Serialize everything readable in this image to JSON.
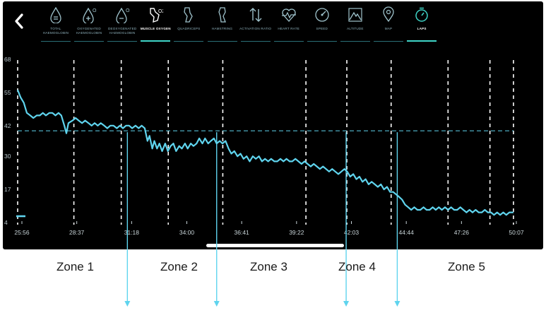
{
  "header": {
    "tabs": [
      {
        "label": "TOTAL HAEMOGLOBIN",
        "icon": "total-haemoglobin-icon",
        "active": false
      },
      {
        "label": "OXYGENATED HAEMOGLOBIN",
        "icon": "oxygenated-haemoglobin-icon",
        "active": false
      },
      {
        "label": "DEOXYGENATED HAEMOGLOBIN",
        "icon": "deoxygenated-haemoglobin-icon",
        "active": false
      },
      {
        "label": "MUSCLE OXYGEN",
        "icon": "muscle-oxygen-icon",
        "active": true
      },
      {
        "label": "QUADRICEPS",
        "icon": "quadriceps-icon",
        "active": false
      },
      {
        "label": "HAMSTRING",
        "icon": "hamstring-icon",
        "active": false
      },
      {
        "label": "ACTIVATION RATIO",
        "icon": "activation-ratio-icon",
        "active": false
      },
      {
        "label": "HEART RATE",
        "icon": "heart-rate-icon",
        "active": false
      },
      {
        "label": "SPEED",
        "icon": "speed-icon",
        "active": false
      },
      {
        "label": "ALTITUDE",
        "icon": "altitude-icon",
        "active": false
      },
      {
        "label": "MAP",
        "icon": "map-icon",
        "active": false
      },
      {
        "label": "LAPS",
        "icon": "laps-icon",
        "active": true
      }
    ]
  },
  "chart_data": {
    "type": "line",
    "y_ticks": [
      "68",
      "55",
      "42",
      "30",
      "17",
      "4"
    ],
    "ylim": [
      4,
      68
    ],
    "x_ticks": [
      "25:56",
      "28:37",
      "31:18",
      "34:00",
      "36:41",
      "39:22",
      "42:03",
      "44:44",
      "47:26",
      "50:07"
    ],
    "xlim": [
      "25:56",
      "50:07"
    ],
    "reference_line": 40,
    "lap_markers": [
      "25:56",
      "28:41",
      "31:00",
      "33:18",
      "35:58",
      "40:02",
      "42:02",
      "44:12",
      "46:59",
      "49:02",
      "50:11"
    ],
    "series": [
      {
        "color": "#5fd4ee",
        "points": [
          [
            "25:56",
            56
          ],
          [
            "26:05",
            53
          ],
          [
            "26:14",
            51
          ],
          [
            "26:23",
            47
          ],
          [
            "26:33",
            46
          ],
          [
            "26:42",
            45
          ],
          [
            "26:52",
            46
          ],
          [
            "27:01",
            46
          ],
          [
            "27:10",
            47
          ],
          [
            "27:19",
            46
          ],
          [
            "27:29",
            47
          ],
          [
            "27:38",
            47
          ],
          [
            "27:47",
            46
          ],
          [
            "27:56",
            47
          ],
          [
            "28:04",
            46
          ],
          [
            "28:13",
            42
          ],
          [
            "28:19",
            39
          ],
          [
            "28:25",
            43
          ],
          [
            "28:37",
            44
          ],
          [
            "28:46",
            45
          ],
          [
            "28:55",
            44
          ],
          [
            "29:05",
            43
          ],
          [
            "29:14",
            44
          ],
          [
            "29:24",
            43
          ],
          [
            "29:33",
            42
          ],
          [
            "29:42",
            43
          ],
          [
            "29:51",
            42
          ],
          [
            "30:00",
            43
          ],
          [
            "30:10",
            42
          ],
          [
            "30:19",
            41
          ],
          [
            "30:28",
            42
          ],
          [
            "30:37",
            42
          ],
          [
            "30:47",
            41
          ],
          [
            "30:56",
            42
          ],
          [
            "31:05",
            41
          ],
          [
            "31:14",
            42
          ],
          [
            "31:23",
            42
          ],
          [
            "31:32",
            41
          ],
          [
            "31:42",
            42
          ],
          [
            "31:51",
            41
          ],
          [
            "32:00",
            42
          ],
          [
            "32:09",
            41
          ],
          [
            "32:17",
            36
          ],
          [
            "32:23",
            38
          ],
          [
            "32:31",
            33
          ],
          [
            "32:37",
            36
          ],
          [
            "32:45",
            33
          ],
          [
            "32:52",
            35
          ],
          [
            "33:00",
            32
          ],
          [
            "33:09",
            35
          ],
          [
            "33:17",
            32
          ],
          [
            "33:25",
            34
          ],
          [
            "33:33",
            35
          ],
          [
            "33:41",
            32
          ],
          [
            "33:50",
            34
          ],
          [
            "33:58",
            33
          ],
          [
            "34:07",
            35
          ],
          [
            "34:15",
            33
          ],
          [
            "34:24",
            35
          ],
          [
            "34:32",
            34
          ],
          [
            "34:41",
            35
          ],
          [
            "34:49",
            37
          ],
          [
            "34:58",
            35
          ],
          [
            "35:06",
            37
          ],
          [
            "35:15",
            35
          ],
          [
            "35:23",
            36
          ],
          [
            "35:32",
            37
          ],
          [
            "35:40",
            35
          ],
          [
            "35:49",
            36
          ],
          [
            "35:57",
            35
          ],
          [
            "36:06",
            36
          ],
          [
            "36:15",
            33
          ],
          [
            "36:23",
            31
          ],
          [
            "36:32",
            32
          ],
          [
            "36:41",
            30
          ],
          [
            "36:50",
            31
          ],
          [
            "36:59",
            29
          ],
          [
            "37:08",
            30
          ],
          [
            "37:17",
            28
          ],
          [
            "37:26",
            30
          ],
          [
            "37:35",
            29
          ],
          [
            "37:44",
            30
          ],
          [
            "37:53",
            28
          ],
          [
            "38:02",
            29
          ],
          [
            "38:11",
            28
          ],
          [
            "38:20",
            29
          ],
          [
            "38:29",
            28
          ],
          [
            "38:38",
            28
          ],
          [
            "38:47",
            29
          ],
          [
            "38:56",
            28
          ],
          [
            "39:05",
            29
          ],
          [
            "39:14",
            28
          ],
          [
            "39:22",
            28
          ],
          [
            "39:31",
            29
          ],
          [
            "39:40",
            28
          ],
          [
            "39:49",
            27
          ],
          [
            "39:58",
            28
          ],
          [
            "40:07",
            27
          ],
          [
            "40:16",
            26
          ],
          [
            "40:25",
            27
          ],
          [
            "40:34",
            26
          ],
          [
            "40:43",
            25
          ],
          [
            "40:52",
            26
          ],
          [
            "41:01",
            25
          ],
          [
            "41:10",
            24
          ],
          [
            "41:19",
            25
          ],
          [
            "41:28",
            24
          ],
          [
            "41:37",
            23
          ],
          [
            "41:46",
            24
          ],
          [
            "41:55",
            25
          ],
          [
            "42:03",
            24
          ],
          [
            "42:12",
            22
          ],
          [
            "42:21",
            23
          ],
          [
            "42:30",
            21
          ],
          [
            "42:39",
            22
          ],
          [
            "42:48",
            20
          ],
          [
            "42:57",
            21
          ],
          [
            "43:06",
            19
          ],
          [
            "43:15",
            20
          ],
          [
            "43:24",
            19
          ],
          [
            "43:33",
            18
          ],
          [
            "43:42",
            19
          ],
          [
            "43:51",
            17
          ],
          [
            "44:00",
            18
          ],
          [
            "44:09",
            16
          ],
          [
            "44:18",
            16
          ],
          [
            "44:27",
            15
          ],
          [
            "44:36",
            14
          ],
          [
            "44:44",
            13
          ],
          [
            "44:53",
            11
          ],
          [
            "45:02",
            10
          ],
          [
            "45:11",
            9
          ],
          [
            "45:20",
            10
          ],
          [
            "45:29",
            9
          ],
          [
            "45:38",
            9
          ],
          [
            "45:47",
            10
          ],
          [
            "45:56",
            9
          ],
          [
            "46:05",
            9
          ],
          [
            "46:14",
            10
          ],
          [
            "46:23",
            9
          ],
          [
            "46:32",
            10
          ],
          [
            "46:41",
            9
          ],
          [
            "46:50",
            10
          ],
          [
            "46:59",
            9
          ],
          [
            "47:08",
            10
          ],
          [
            "47:17",
            9
          ],
          [
            "47:26",
            9
          ],
          [
            "47:35",
            10
          ],
          [
            "47:44",
            9
          ],
          [
            "47:53",
            8
          ],
          [
            "48:02",
            9
          ],
          [
            "48:11",
            8
          ],
          [
            "48:20",
            9
          ],
          [
            "48:29",
            8
          ],
          [
            "48:38",
            8
          ],
          [
            "48:47",
            9
          ],
          [
            "48:56",
            8
          ],
          [
            "49:05",
            8
          ],
          [
            "49:14",
            7
          ],
          [
            "49:23",
            8
          ],
          [
            "49:32",
            7
          ],
          [
            "49:41",
            8
          ],
          [
            "49:50",
            7
          ],
          [
            "49:59",
            8
          ],
          [
            "50:07",
            8
          ],
          [
            "50:11",
            8
          ]
        ]
      }
    ]
  },
  "zones": [
    "Zone 1",
    "Zone 2",
    "Zone 3",
    "Zone 4",
    "Zone 5"
  ],
  "transition_markers": [
    "31:18",
    "35:40",
    "42:00",
    "44:30"
  ]
}
